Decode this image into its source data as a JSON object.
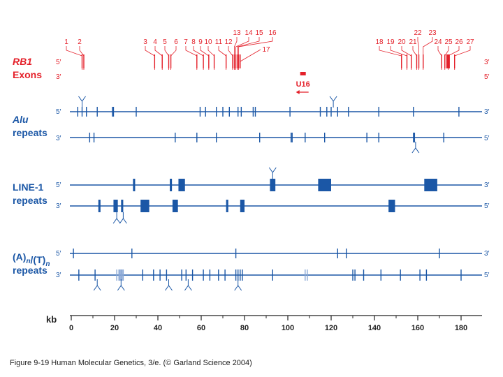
{
  "colors": {
    "red": "#e4202a",
    "blue": "#1b57a6",
    "black": "#222222",
    "light_blue": "#8aa8d6"
  },
  "rb1": {
    "label_line1": "RB1",
    "label_line2": "Exons",
    "strand_top_left": "5′",
    "strand_bottom_left": "3′",
    "strand_top_right": "3′",
    "strand_bottom_right": "5′",
    "exons": [
      {
        "label": "1",
        "kb": 5
      },
      {
        "label": "2",
        "kb": 5.8
      },
      {
        "label": "3",
        "kb": 38.5
      },
      {
        "label": "4",
        "kb": 42
      },
      {
        "label": "5",
        "kb": 45
      },
      {
        "label": "6",
        "kb": 46
      },
      {
        "label": "7",
        "kb": 58
      },
      {
        "label": "8",
        "kb": 61
      },
      {
        "label": "9",
        "kb": 63.5
      },
      {
        "label": "10",
        "kb": 66
      },
      {
        "label": "11",
        "kb": 71.5
      },
      {
        "label": "12",
        "kb": 74.5
      },
      {
        "label": "13",
        "kb": 75.3
      },
      {
        "label": "14",
        "kb": 76
      },
      {
        "label": "15",
        "kb": 76.7
      },
      {
        "label": "16",
        "kb": 77.3
      },
      {
        "label": "17",
        "kb": 78
      },
      {
        "label": "18",
        "kb": 152.5
      },
      {
        "label": "19",
        "kb": 155
      },
      {
        "label": "20",
        "kb": 157
      },
      {
        "label": "21",
        "kb": 159.5
      },
      {
        "label": "22",
        "kb": 160.5
      },
      {
        "label": "23",
        "kb": 162.5
      },
      {
        "label": "24",
        "kb": 171
      },
      {
        "label": "25",
        "kb": 172.5
      },
      {
        "label": "26",
        "kb": 174
      },
      {
        "label": "27",
        "kb": 177
      }
    ],
    "u16": {
      "label": "U16",
      "kb": 107
    }
  },
  "alu": {
    "label_line1": "Alu",
    "label_line2": "repeats",
    "strand_top_left": "5′",
    "strand_bottom_left": "3′",
    "strand_top_right": "3′",
    "strand_bottom_right": "5′",
    "top": [
      3,
      5,
      7,
      12,
      19,
      19.5,
      30,
      59.5,
      62,
      67,
      70,
      73,
      77,
      78.5,
      84,
      85,
      101,
      115,
      118,
      120,
      123,
      128,
      142,
      158,
      179
    ],
    "bottom": [
      8.5,
      10.5,
      48,
      58,
      67,
      87,
      101.5,
      102,
      108,
      117,
      136.5,
      142,
      158,
      158.5,
      172
    ],
    "top_forks_kb": [
      5,
      121
    ],
    "bottom_forks_kb": [
      159
    ]
  },
  "line1": {
    "label_line1": "LINE-1",
    "label_line2": "repeats",
    "strand_top_left": "5′",
    "strand_bottom_left": "3′",
    "strand_top_right": "3′",
    "strand_bottom_right": "5′",
    "top": [
      {
        "kb": 29,
        "w": 1
      },
      {
        "kb": 46,
        "w": 1
      },
      {
        "kb": 51,
        "w": 3
      },
      {
        "kb": 93,
        "w": 2.5
      },
      {
        "kb": 117,
        "w": 6
      },
      {
        "kb": 166,
        "w": 6
      }
    ],
    "bottom": [
      {
        "kb": 13,
        "w": 1
      },
      {
        "kb": 20.5,
        "w": 2
      },
      {
        "kb": 23.5,
        "w": 1
      },
      {
        "kb": 34,
        "w": 4
      },
      {
        "kb": 48,
        "w": 2.5
      },
      {
        "kb": 72,
        "w": 1
      },
      {
        "kb": 79,
        "w": 2
      },
      {
        "kb": 148,
        "w": 3
      }
    ],
    "top_forks_kb": [
      93
    ],
    "bottom_forks_kb": [
      21,
      24
    ]
  },
  "polya": {
    "label_line1": "(A)n/(T)n",
    "label_line2": "repeats",
    "strand_top_left": "5′",
    "strand_bottom_left": "3′",
    "strand_top_right": "3′",
    "strand_bottom_right": "5′",
    "top": [
      1,
      28,
      76,
      123,
      127,
      170
    ],
    "bottom": [
      3.5,
      11,
      21,
      22,
      22.5,
      23,
      23.5,
      24,
      33,
      38,
      41,
      44,
      51,
      53,
      56,
      61,
      64,
      68,
      71,
      76,
      77,
      78,
      79,
      93,
      108,
      109,
      130,
      131,
      135,
      143,
      152,
      161,
      164,
      180
    ],
    "bottom_light_kb": [
      21,
      22,
      22.5,
      23,
      23.5,
      24,
      108,
      109
    ],
    "bottom_forks_kb": [
      12,
      23,
      45,
      54,
      77
    ]
  },
  "axis": {
    "label": "kb",
    "ticks": [
      "0",
      "20",
      "40",
      "60",
      "80",
      "100",
      "120",
      "140",
      "160",
      "180"
    ]
  },
  "caption": "Figure 9-19  Human Molecular Genetics, 3/e.  (© Garland Science 2004)"
}
